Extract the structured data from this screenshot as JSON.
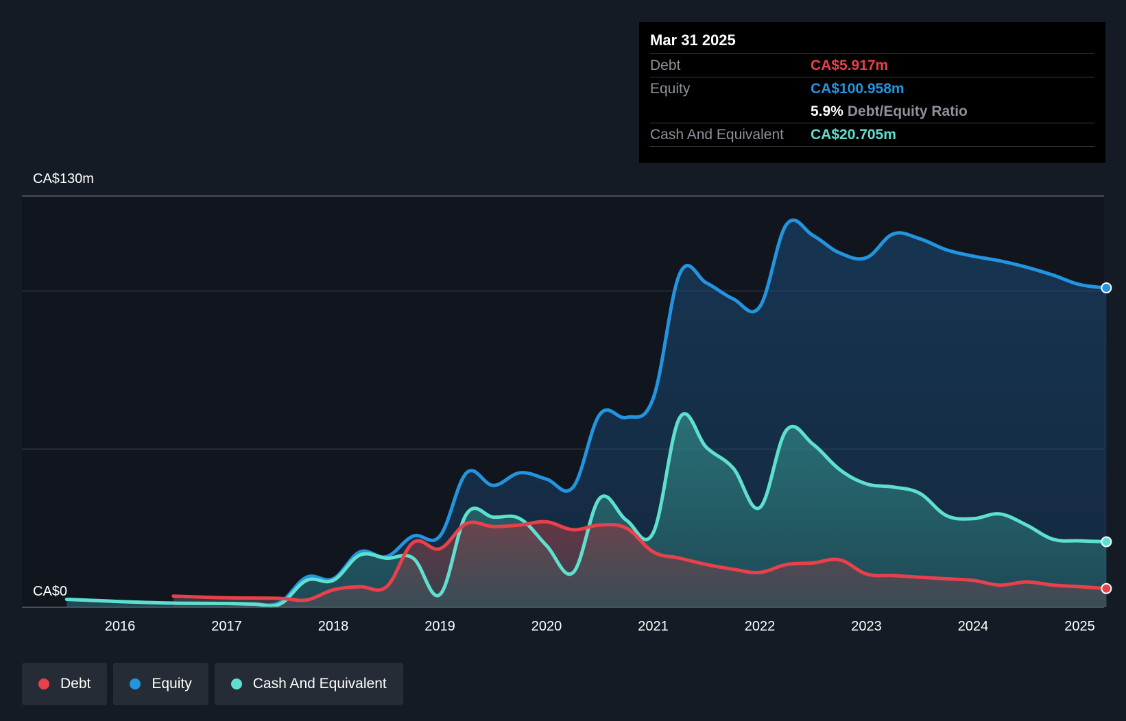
{
  "tooltip": {
    "date": "Mar 31 2025",
    "debt_label": "Debt",
    "debt_value": "CA$5.917m",
    "equity_label": "Equity",
    "equity_value": "CA$100.958m",
    "ratio_value": "5.9%",
    "ratio_label": "Debt/Equity Ratio",
    "cash_label": "Cash And Equivalent",
    "cash_value": "CA$20.705m"
  },
  "legend": {
    "debt": "Debt",
    "equity": "Equity",
    "cash": "Cash And Equivalent"
  },
  "colors": {
    "debt": "#e8414b",
    "equity": "#2394df",
    "cash": "#5fe0cf",
    "background": "#151b24"
  },
  "chart_data": {
    "type": "area",
    "title": "",
    "xlabel": "",
    "ylabel": "",
    "ylim": [
      0,
      130
    ],
    "y_top_label": "CA$130m",
    "y_bottom_label": "CA$0",
    "x_ticks": [
      "2016",
      "2017",
      "2018",
      "2019",
      "2020",
      "2021",
      "2022",
      "2023",
      "2024",
      "2025"
    ],
    "x_tick_values": [
      2016,
      2017,
      2018,
      2019,
      2020,
      2021,
      2022,
      2023,
      2024,
      2025
    ],
    "xlim": [
      2015.1,
      2025.25
    ],
    "series": [
      {
        "name": "Equity",
        "key": "equity",
        "points": [
          [
            2015.5,
            2.5
          ],
          [
            2016.0,
            1.8
          ],
          [
            2016.5,
            1.3
          ],
          [
            2017.0,
            1.2
          ],
          [
            2017.25,
            1.0
          ],
          [
            2017.5,
            1.5
          ],
          [
            2017.75,
            9.5
          ],
          [
            2018.0,
            9.0
          ],
          [
            2018.25,
            17.5
          ],
          [
            2018.5,
            16.0
          ],
          [
            2018.75,
            22.5
          ],
          [
            2019.0,
            22.5
          ],
          [
            2019.25,
            42.5
          ],
          [
            2019.5,
            38.5
          ],
          [
            2019.75,
            42.5
          ],
          [
            2020.0,
            40.5
          ],
          [
            2020.25,
            38.0
          ],
          [
            2020.5,
            61.0
          ],
          [
            2020.75,
            60.0
          ],
          [
            2021.0,
            66.0
          ],
          [
            2021.25,
            105.5
          ],
          [
            2021.5,
            102.5
          ],
          [
            2021.75,
            97.5
          ],
          [
            2022.0,
            95.0
          ],
          [
            2022.25,
            121.0
          ],
          [
            2022.5,
            117.5
          ],
          [
            2022.75,
            112.0
          ],
          [
            2023.0,
            110.5
          ],
          [
            2023.25,
            118.0
          ],
          [
            2023.5,
            116.5
          ],
          [
            2023.75,
            113.0
          ],
          [
            2024.0,
            111.0
          ],
          [
            2024.25,
            109.5
          ],
          [
            2024.5,
            107.5
          ],
          [
            2024.75,
            105.0
          ],
          [
            2025.0,
            102.0
          ],
          [
            2025.25,
            100.958
          ]
        ]
      },
      {
        "name": "Cash And Equivalent",
        "key": "cash",
        "points": [
          [
            2015.5,
            2.5
          ],
          [
            2016.0,
            1.8
          ],
          [
            2016.5,
            1.3
          ],
          [
            2017.0,
            1.2
          ],
          [
            2017.25,
            1.0
          ],
          [
            2017.5,
            1.0
          ],
          [
            2017.75,
            8.5
          ],
          [
            2018.0,
            8.5
          ],
          [
            2018.25,
            16.5
          ],
          [
            2018.5,
            15.5
          ],
          [
            2018.75,
            15.5
          ],
          [
            2019.0,
            4.0
          ],
          [
            2019.25,
            29.5
          ],
          [
            2019.5,
            28.5
          ],
          [
            2019.75,
            28.0
          ],
          [
            2020.0,
            19.5
          ],
          [
            2020.25,
            11.0
          ],
          [
            2020.5,
            34.5
          ],
          [
            2020.75,
            27.5
          ],
          [
            2021.0,
            23.5
          ],
          [
            2021.25,
            60.0
          ],
          [
            2021.5,
            50.5
          ],
          [
            2021.75,
            44.0
          ],
          [
            2022.0,
            31.5
          ],
          [
            2022.25,
            56.0
          ],
          [
            2022.5,
            51.5
          ],
          [
            2022.75,
            43.5
          ],
          [
            2023.0,
            39.0
          ],
          [
            2023.25,
            38.0
          ],
          [
            2023.5,
            36.0
          ],
          [
            2023.75,
            29.0
          ],
          [
            2024.0,
            28.0
          ],
          [
            2024.25,
            29.5
          ],
          [
            2024.5,
            26.0
          ],
          [
            2024.75,
            21.5
          ],
          [
            2025.0,
            21.0
          ],
          [
            2025.25,
            20.705
          ]
        ]
      },
      {
        "name": "Debt",
        "key": "debt",
        "points": [
          [
            2016.5,
            3.5
          ],
          [
            2017.0,
            3.0
          ],
          [
            2017.5,
            2.8
          ],
          [
            2017.75,
            2.3
          ],
          [
            2018.0,
            5.5
          ],
          [
            2018.25,
            6.5
          ],
          [
            2018.5,
            6.5
          ],
          [
            2018.75,
            20.5
          ],
          [
            2019.0,
            18.5
          ],
          [
            2019.25,
            26.5
          ],
          [
            2019.5,
            25.5
          ],
          [
            2019.75,
            26.0
          ],
          [
            2020.0,
            27.0
          ],
          [
            2020.25,
            24.5
          ],
          [
            2020.5,
            26.0
          ],
          [
            2020.75,
            25.0
          ],
          [
            2021.0,
            17.5
          ],
          [
            2021.25,
            15.5
          ],
          [
            2021.5,
            13.5
          ],
          [
            2021.75,
            12.0
          ],
          [
            2022.0,
            11.0
          ],
          [
            2022.25,
            13.5
          ],
          [
            2022.5,
            14.0
          ],
          [
            2022.75,
            15.0
          ],
          [
            2023.0,
            10.5
          ],
          [
            2023.25,
            10.0
          ],
          [
            2023.5,
            9.5
          ],
          [
            2023.75,
            9.0
          ],
          [
            2024.0,
            8.5
          ],
          [
            2024.25,
            7.0
          ],
          [
            2024.5,
            8.0
          ],
          [
            2024.75,
            7.0
          ],
          [
            2025.0,
            6.5
          ],
          [
            2025.25,
            5.917
          ]
        ]
      }
    ]
  }
}
